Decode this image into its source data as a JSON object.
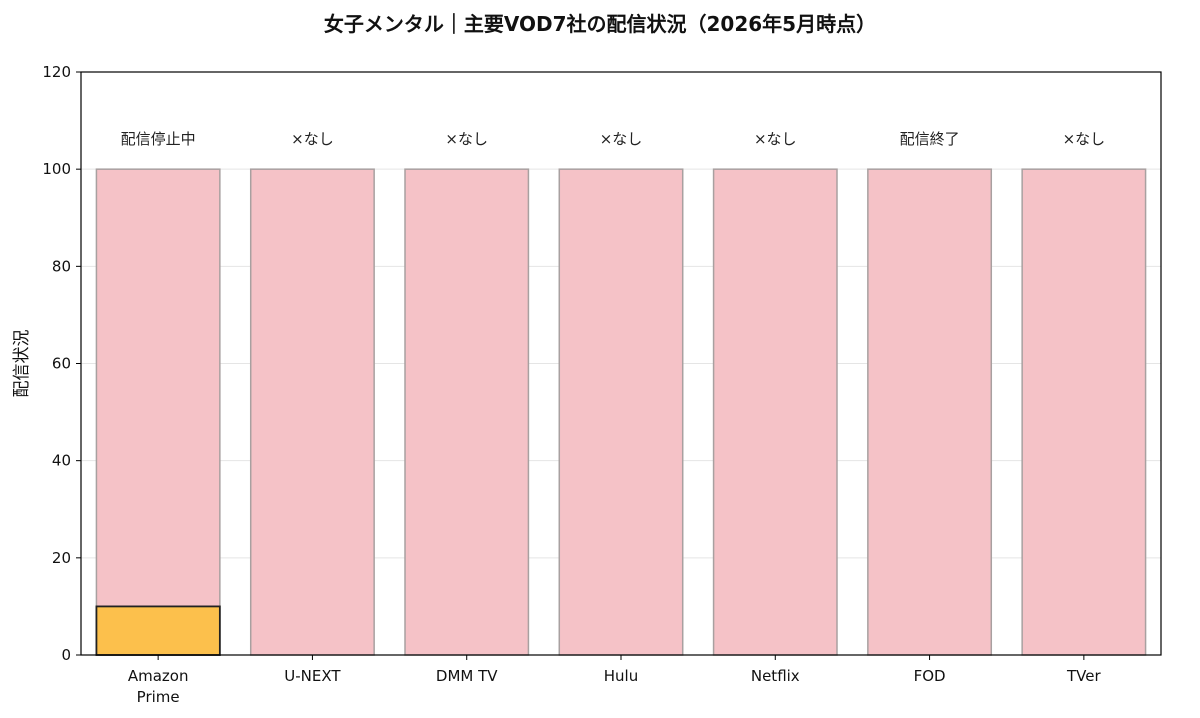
{
  "chart_data": {
    "type": "bar",
    "title": "女子メンタル｜主要VOD7社の配信状況（2026年5月時点）",
    "xlabel": "",
    "ylabel": "配信状況",
    "ylim": [
      0,
      120
    ],
    "yticks": [
      0,
      20,
      40,
      60,
      80,
      100,
      120
    ],
    "grid": true,
    "categories": [
      "Amazon\nPrime",
      "U-NEXT",
      "DMM TV",
      "Hulu",
      "Netflix",
      "FOD",
      "TVer"
    ],
    "values": [
      10,
      0,
      0,
      0,
      0,
      0,
      0
    ],
    "background_values": [
      100,
      100,
      100,
      100,
      100,
      100,
      100
    ],
    "annotations": [
      "配信停止中",
      "×なし",
      "×なし",
      "×なし",
      "×なし",
      "配信終了",
      "×なし"
    ],
    "colors": {
      "background_bar": "#f5c2c7",
      "background_bar_edge": "#a8a0a0",
      "highlight_bar": "#fcc04c",
      "highlight_bar_edge": "#222222",
      "grid": "#e5e5e5",
      "axis": "#000000"
    }
  }
}
